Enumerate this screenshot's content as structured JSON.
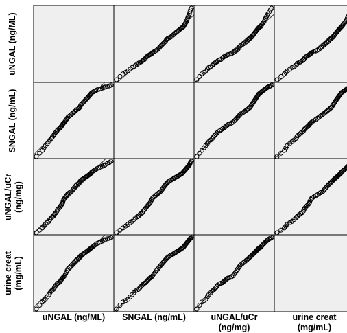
{
  "chart_data": {
    "type": "scatter",
    "variables": [
      "uNGAL (ng/ML)",
      "SNGAL (ng/mL)",
      "uNGAL/uCr (ng/mg)",
      "urine creat (mg/mL)"
    ],
    "row_labels": [
      [
        "uNGAL (ng/ML)"
      ],
      [
        "SNGAL (ng/mL)"
      ],
      [
        "uNGAL/uCr",
        "(ng/mg)"
      ],
      [
        "urine creat",
        "(mg/mL)"
      ]
    ],
    "column_labels": [
      [
        "uNGAL (ng/ML)"
      ],
      [
        "SNGAL (ng/mL)"
      ],
      [
        "uNGAL/uCr",
        "(ng/mg)"
      ],
      [
        "urine creat",
        "(mg/mL)"
      ]
    ],
    "grid": false,
    "fit_lines": true,
    "panel_bg": "#efefef",
    "marker_color": "#000000",
    "values": {
      "uNGAL": [
        12,
        15,
        18,
        20,
        22,
        25,
        28,
        30,
        33,
        35,
        38,
        40,
        42,
        45,
        48,
        50,
        55,
        60,
        62,
        65,
        68,
        70,
        72,
        75,
        80,
        85,
        90,
        95,
        100,
        110,
        120,
        130,
        140,
        150,
        160,
        170,
        180,
        200,
        210,
        220,
        230,
        240,
        260,
        280,
        300,
        320,
        340,
        360,
        380,
        400,
        420,
        440,
        460,
        480,
        500,
        550,
        600,
        650,
        700,
        800,
        900,
        1000,
        1100,
        1200,
        1400,
        1600,
        1800
      ],
      "SNGAL": [
        30,
        35,
        40,
        45,
        50,
        55,
        60,
        65,
        70,
        75,
        80,
        85,
        90,
        95,
        100,
        105,
        110,
        115,
        120,
        125,
        130,
        135,
        140,
        145,
        150,
        160,
        170,
        180,
        190,
        200,
        210,
        220,
        230,
        240,
        250,
        260,
        270,
        280,
        290,
        300,
        320,
        340,
        360,
        380,
        400,
        420,
        440,
        460,
        480,
        500,
        520,
        540,
        560,
        580,
        600,
        620,
        640,
        660,
        680,
        700,
        720,
        740,
        760,
        780,
        800,
        820,
        850
      ],
      "uNGAL_uCr": [
        10,
        12,
        14,
        16,
        18,
        20,
        22,
        25,
        28,
        30,
        32,
        35,
        38,
        40,
        45,
        50,
        55,
        60,
        65,
        70,
        75,
        80,
        90,
        100,
        110,
        120,
        130,
        140,
        150,
        160,
        170,
        180,
        200,
        220,
        240,
        260,
        280,
        300,
        320,
        340,
        360,
        380,
        400,
        420,
        440,
        460,
        480,
        500,
        520,
        540,
        560,
        580,
        600,
        640,
        680,
        720,
        760,
        800,
        850,
        900,
        950,
        1000,
        1050,
        1100,
        1200,
        1300,
        1400
      ],
      "urine_creat": [
        0.1,
        0.12,
        0.14,
        0.15,
        0.16,
        0.18,
        0.2,
        0.22,
        0.24,
        0.25,
        0.26,
        0.28,
        0.3,
        0.32,
        0.34,
        0.35,
        0.36,
        0.38,
        0.4,
        0.42,
        0.44,
        0.45,
        0.46,
        0.48,
        0.5,
        0.55,
        0.6,
        0.65,
        0.7,
        0.75,
        0.8,
        0.85,
        0.9,
        0.95,
        1.0,
        1.05,
        1.1,
        1.15,
        1.2,
        1.25,
        1.3,
        1.35,
        1.4,
        1.45,
        1.5,
        1.55,
        1.6,
        1.65,
        1.7,
        1.75,
        1.8,
        1.85,
        1.9,
        1.95,
        2.0,
        2.1,
        2.2,
        2.3,
        2.4,
        2.5,
        2.6,
        2.7,
        2.8,
        2.9,
        3.0,
        3.1,
        3.2
      ]
    }
  }
}
